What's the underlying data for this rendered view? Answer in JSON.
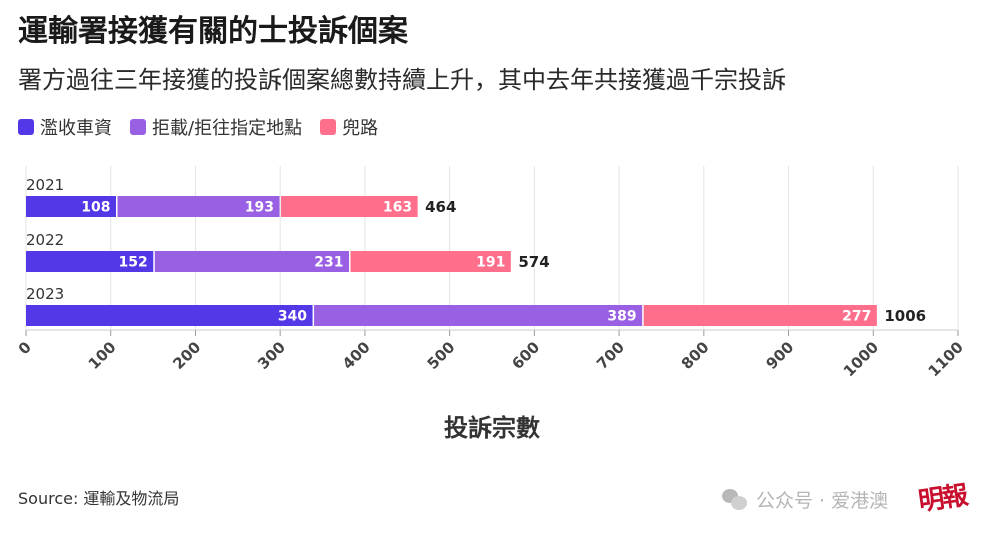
{
  "title": "運輸署接獲有關的士投訴個案",
  "subtitle": "署方過往三年接獲的投訴個案總數持續上升，其中去年共接獲過千宗投訴",
  "source": "Source: 運輸及物流局",
  "watermark": {
    "text": "公众号 · 爱港澳",
    "icon": "wechat-icon",
    "logo_text": "明報"
  },
  "chart_data": {
    "type": "bar",
    "orientation": "horizontal",
    "stacked": true,
    "categories": [
      "2021",
      "2022",
      "2023"
    ],
    "series": [
      {
        "name": "濫收車資",
        "color": "#5238e6",
        "values": [
          108,
          152,
          340
        ]
      },
      {
        "name": "拒載/拒往指定地點",
        "color": "#9a60e4",
        "values": [
          193,
          231,
          389
        ]
      },
      {
        "name": "兜路",
        "color": "#ff6f8c",
        "values": [
          163,
          191,
          277
        ]
      }
    ],
    "totals": [
      464,
      574,
      1006
    ],
    "xlabel": "投訴宗數",
    "ylabel": "",
    "xlim": [
      0,
      1100
    ],
    "xticks": [
      0,
      100,
      200,
      300,
      400,
      500,
      600,
      700,
      800,
      900,
      1000,
      1100
    ],
    "grid": true,
    "legend": "top-left"
  }
}
